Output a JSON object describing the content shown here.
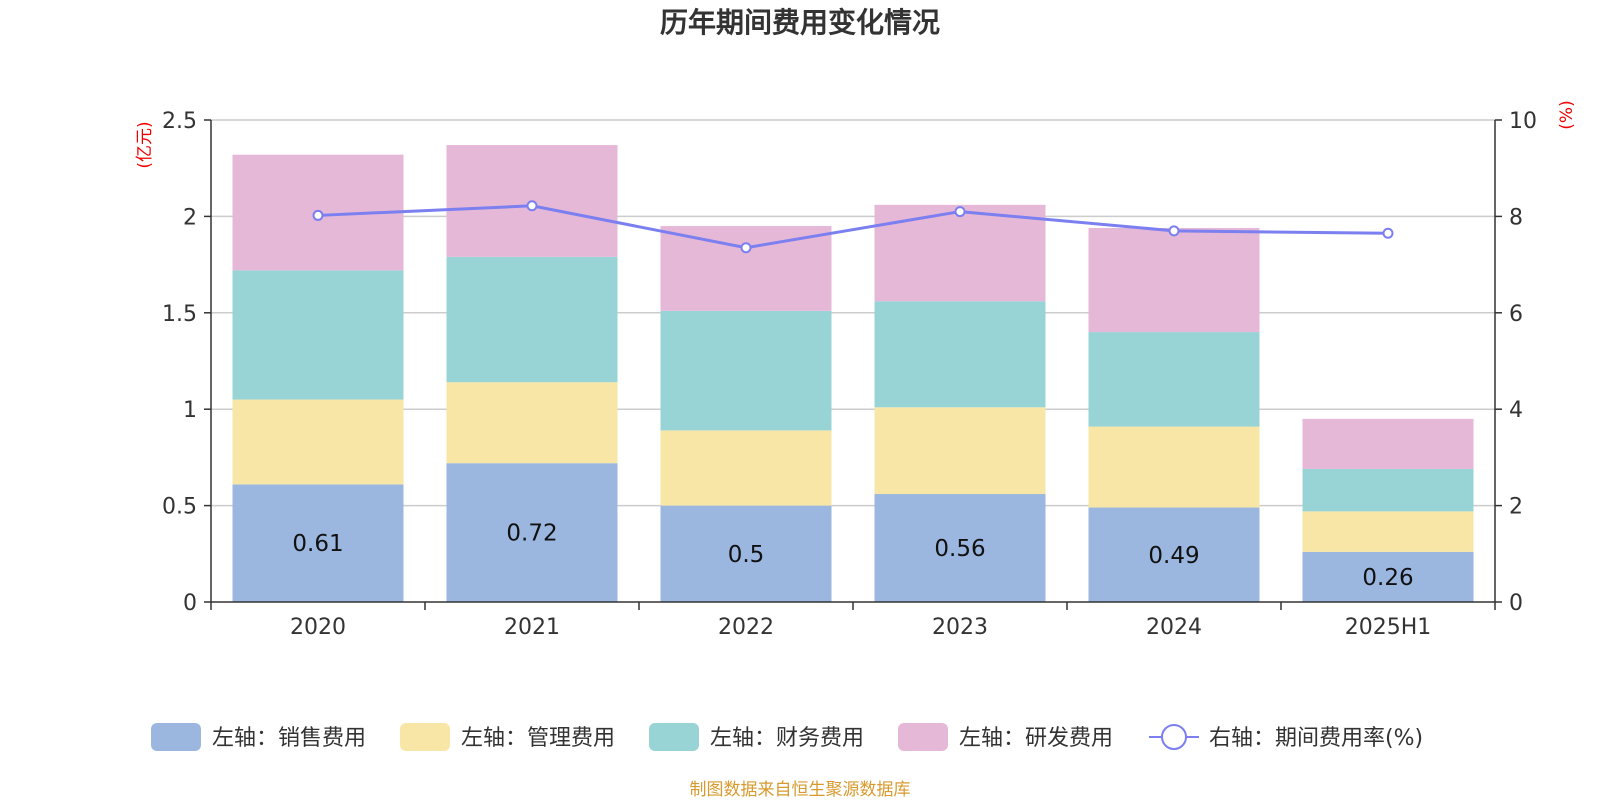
{
  "title": "历年期间费用变化情况",
  "source": "制图数据来自恒生聚源数据库",
  "chart_data": {
    "type": "bar",
    "stacked": true,
    "categories": [
      "2020",
      "2021",
      "2022",
      "2023",
      "2024",
      "2025H1"
    ],
    "left_axis": {
      "unit": "(亿元)",
      "ticks": [
        "0",
        "0.5",
        "1",
        "1.5",
        "2",
        "2.5"
      ],
      "range": [
        0,
        2.5
      ]
    },
    "right_axis": {
      "unit": "(%)",
      "ticks": [
        "0",
        "2",
        "4",
        "6",
        "8",
        "10"
      ],
      "range": [
        0,
        10
      ]
    },
    "series": [
      {
        "name": "左轴：销售费用",
        "color": "#9bb7e0",
        "values": [
          0.61,
          0.72,
          0.5,
          0.56,
          0.49,
          0.26
        ],
        "labels": [
          "0.61",
          "0.72",
          "0.5",
          "0.56",
          "0.49",
          "0.26"
        ]
      },
      {
        "name": "左轴：管理费用",
        "color": "#f7e6a6",
        "values": [
          0.44,
          0.42,
          0.39,
          0.45,
          0.42,
          0.21
        ]
      },
      {
        "name": "左轴：财务费用",
        "color": "#98d4d5",
        "values": [
          0.67,
          0.65,
          0.62,
          0.55,
          0.49,
          0.22
        ]
      },
      {
        "name": "左轴：研发费用",
        "color": "#e6b8d8",
        "values": [
          0.6,
          0.58,
          0.44,
          0.5,
          0.54,
          0.26
        ]
      }
    ],
    "line": {
      "name": "右轴：期间费用率(%)",
      "color": "#7b7ff0",
      "values": [
        8.02,
        8.22,
        7.35,
        8.1,
        7.7,
        7.65
      ]
    }
  }
}
